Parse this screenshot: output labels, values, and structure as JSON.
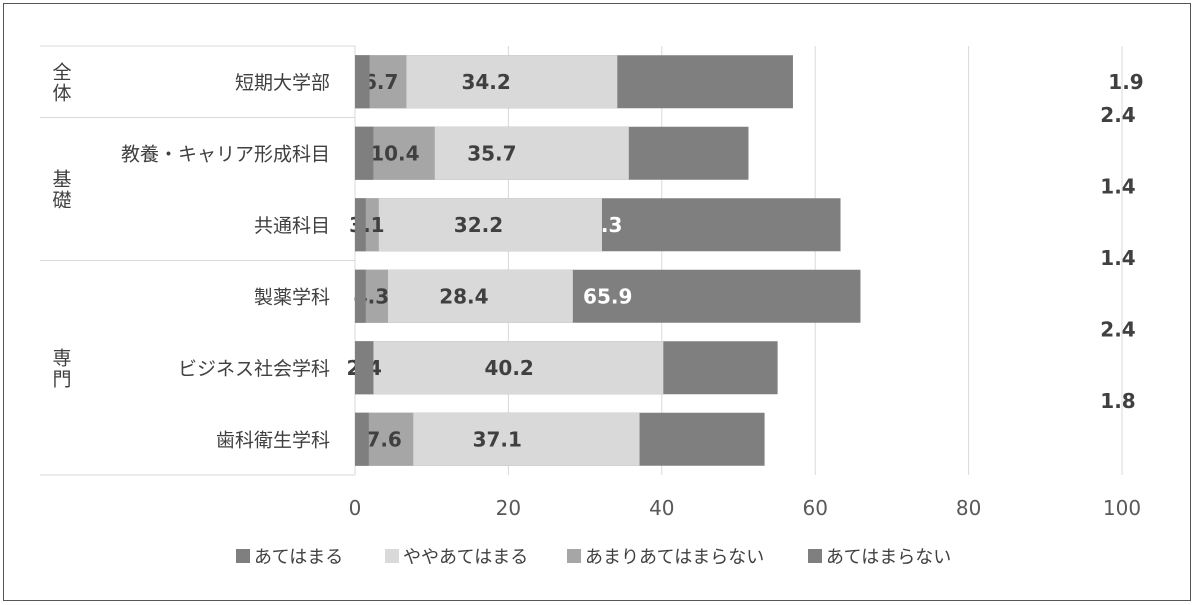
{
  "chart_data": {
    "type": "bar",
    "orientation": "horizontal",
    "stacked": true,
    "groups": [
      {
        "label": "全体",
        "categories": [
          "短期大学部"
        ]
      },
      {
        "label": "基礎",
        "categories": [
          "教養・キャリア形成科目",
          "共通科目"
        ]
      },
      {
        "label": "専門",
        "categories": [
          "製薬学科",
          "ビジネス社会学科",
          "歯科衛生学科"
        ]
      }
    ],
    "categories": [
      "短期大学部",
      "教養・キャリア形成科目",
      "共通科目",
      "製薬学科",
      "ビジネス社会学科",
      "歯科衛生学科"
    ],
    "series": [
      {
        "name": "あてはまる",
        "color": "#7f7f7f",
        "label_color": "#ffffff",
        "values": [
          57.1,
          51.3,
          63.3,
          65.9,
          55.1,
          53.4
        ]
      },
      {
        "name": "ややあてはまる",
        "color": "#d9d9d9",
        "label_color": "#404040",
        "values": [
          34.2,
          35.7,
          32.2,
          28.4,
          40.2,
          37.1
        ]
      },
      {
        "name": "あまりあてはまらない",
        "color": "#a6a6a6",
        "label_color": "#404040",
        "values": [
          6.7,
          10.4,
          3.1,
          4.3,
          2.4,
          7.6
        ]
      },
      {
        "name": "あてはまらない",
        "color": "#7f7f7f",
        "label_color": "#404040",
        "values": [
          1.9,
          2.4,
          1.4,
          1.4,
          2.4,
          1.8
        ]
      }
    ],
    "xlim": [
      0,
      100
    ],
    "xticks": [
      "0",
      "20",
      "40",
      "60",
      "80",
      "100"
    ],
    "grid": true,
    "legend_position": "bottom"
  }
}
